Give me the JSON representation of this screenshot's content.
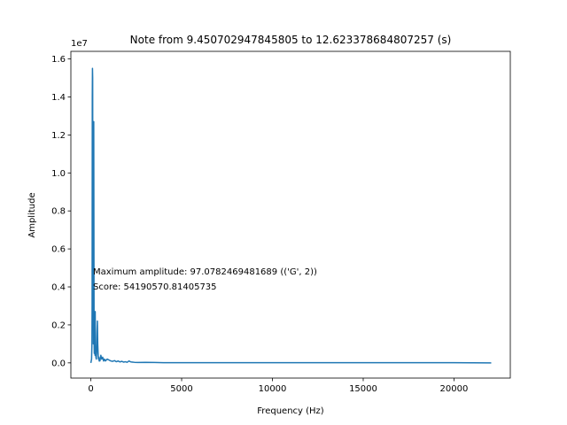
{
  "chart_data": {
    "type": "line",
    "title": "Note from 9.450702947845805 to 12.623378684807257 (s)",
    "xlabel": "Frequency (Hz)",
    "ylabel": "Amplitude",
    "offset_text": "1e7",
    "xlim": [
      -1100,
      23100
    ],
    "ylim": [
      -0.08,
      1.64
    ],
    "x_ticks": [
      0,
      5000,
      10000,
      15000,
      20000
    ],
    "x_tick_labels": [
      "0",
      "5000",
      "10000",
      "15000",
      "20000"
    ],
    "y_ticks": [
      0.0,
      0.2,
      0.4,
      0.6,
      0.8,
      1.0,
      1.2,
      1.4,
      1.6
    ],
    "y_tick_labels": [
      "0.0",
      "0.2",
      "0.4",
      "0.6",
      "0.8",
      "1.0",
      "1.2",
      "1.4",
      "1.6"
    ],
    "grid": false,
    "series": [
      {
        "color": "#1f77b4",
        "x": [
          0,
          40,
          60,
          70,
          80,
          90,
          100,
          110,
          120,
          130,
          140,
          150,
          160,
          170,
          180,
          190,
          200,
          210,
          220,
          230,
          240,
          250,
          260,
          280,
          300,
          320,
          340,
          360,
          380,
          400,
          420,
          440,
          460,
          480,
          500,
          550,
          600,
          650,
          700,
          750,
          800,
          900,
          1000,
          1100,
          1200,
          1300,
          1400,
          1500,
          1600,
          1700,
          1800,
          1900,
          2000,
          2100,
          2200,
          2300,
          2400,
          2600,
          3000,
          3500,
          4000,
          6000,
          8000,
          10000,
          12000,
          14000,
          16000,
          18000,
          20000,
          22050
        ],
        "y": [
          0.0,
          0.02,
          0.1,
          0.3,
          1.4,
          1.55,
          1.5,
          0.6,
          0.2,
          0.4,
          0.1,
          0.9,
          1.27,
          0.6,
          0.1,
          0.05,
          0.12,
          0.2,
          0.08,
          0.04,
          0.27,
          0.1,
          0.05,
          0.03,
          0.02,
          0.05,
          0.16,
          0.22,
          0.1,
          0.05,
          0.02,
          0.03,
          0.01,
          0.02,
          0.01,
          0.04,
          0.02,
          0.03,
          0.01,
          0.02,
          0.01,
          0.02,
          0.015,
          0.01,
          0.008,
          0.012,
          0.006,
          0.01,
          0.005,
          0.008,
          0.004,
          0.006,
          0.003,
          0.01,
          0.005,
          0.004,
          0.003,
          0.002,
          0.003,
          0.002,
          0.001,
          0.001,
          0.001,
          0.001,
          0.001,
          0.001,
          0.001,
          0.001,
          0.001,
          0.0
        ]
      }
    ],
    "annotations": [
      "Maximum amplitude: 97.0782469481689 (('G', 2))",
      "Score: 54190570.81405735"
    ]
  }
}
